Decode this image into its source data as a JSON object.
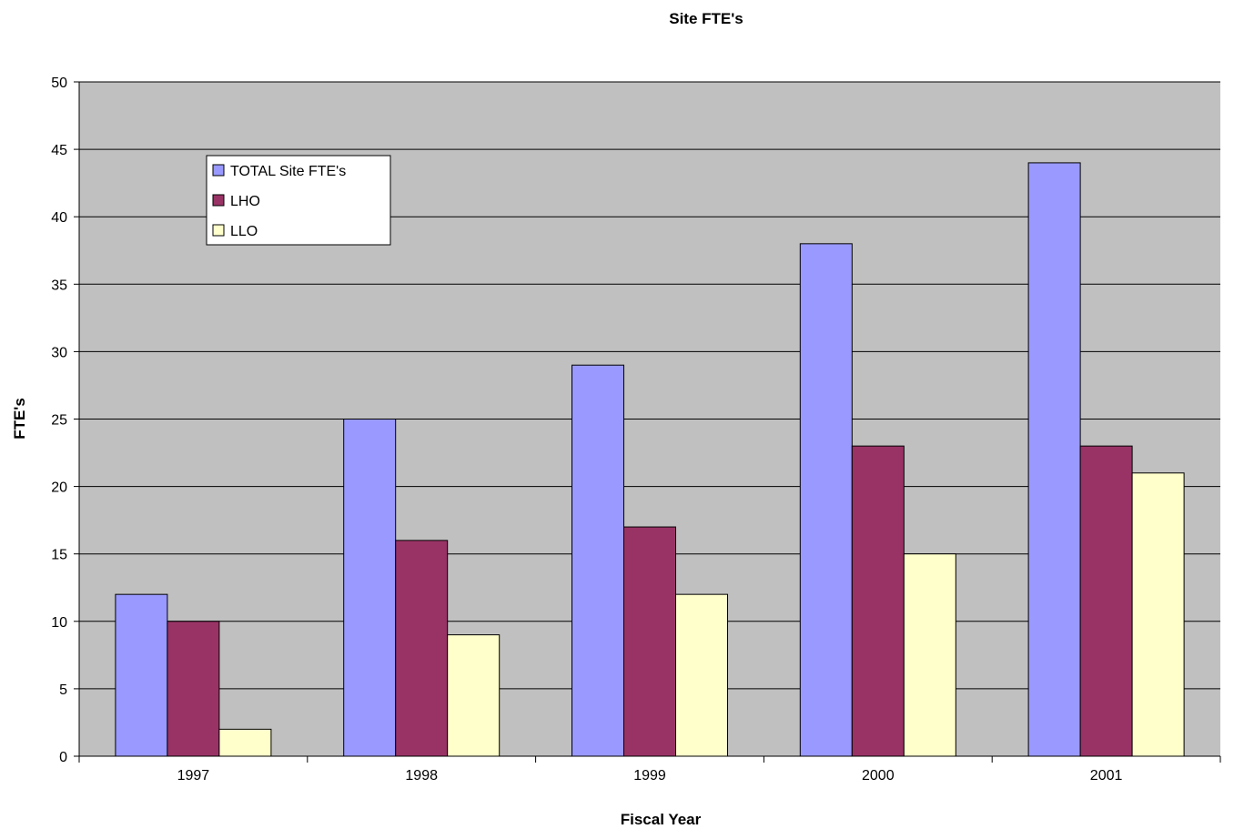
{
  "chart_data": {
    "type": "bar",
    "title": "Site FTE's",
    "xlabel": "Fiscal Year",
    "ylabel": "FTE's",
    "categories": [
      "1997",
      "1998",
      "1999",
      "2000",
      "2001"
    ],
    "series": [
      {
        "name": "TOTAL Site FTE's",
        "values": [
          12,
          25,
          29,
          38,
          44
        ],
        "color": "#9999ff"
      },
      {
        "name": "LHO",
        "values": [
          10,
          16,
          17,
          23,
          23
        ],
        "color": "#993366"
      },
      {
        "name": "LLO",
        "values": [
          2,
          9,
          12,
          15,
          21
        ],
        "color": "#ffffcc"
      }
    ],
    "ylim": [
      0,
      50
    ],
    "yticks": [
      0,
      5,
      10,
      15,
      20,
      25,
      30,
      35,
      40,
      45,
      50
    ],
    "grid": true,
    "plot_background": "#c0c0c0",
    "legend_position": "top-left"
  }
}
